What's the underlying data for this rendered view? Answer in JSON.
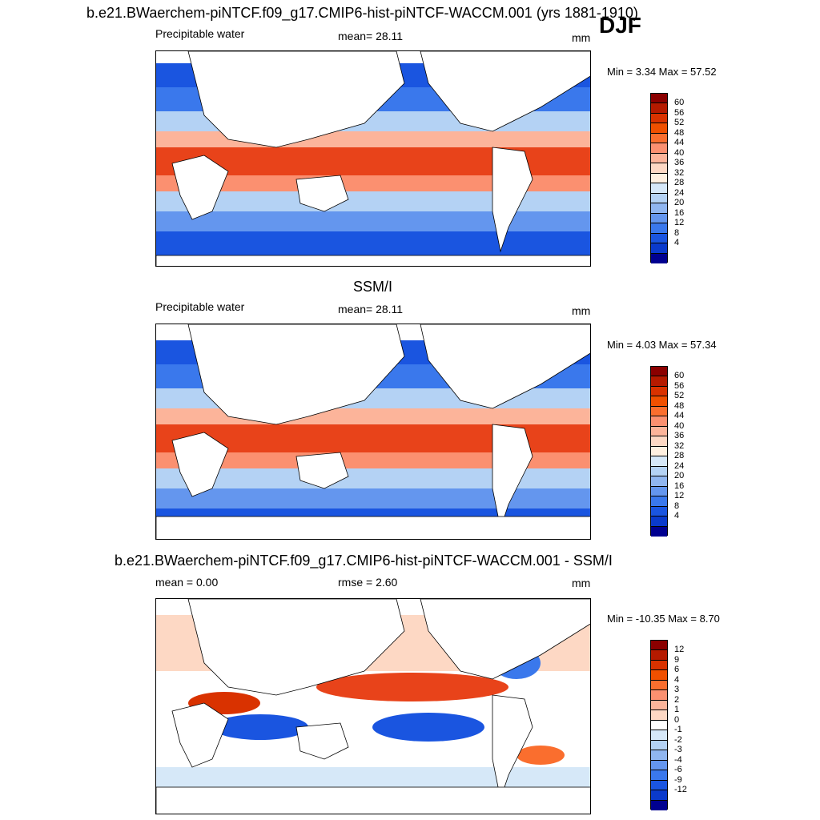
{
  "main_title": "b.e21.BWaerchem-piNTCF.f09_g17.CMIP6-hist-piNTCF-WACCM.001 (yrs 1881-1910)",
  "season": "DJF",
  "panels": [
    {
      "title": "",
      "left_label": "Precipitable water",
      "center_label": "mean=  28.11",
      "right_label": "mm",
      "minmax": "Min =   3.34 Max =  57.52",
      "colorbar": {
        "labels": [
          "60",
          "56",
          "52",
          "48",
          "44",
          "40",
          "36",
          "32",
          "28",
          "24",
          "20",
          "16",
          "12",
          "8",
          "4"
        ],
        "colors": [
          "#8b0000",
          "#b51a00",
          "#d93200",
          "#f05000",
          "#fa6e2e",
          "#fb9070",
          "#fcb49a",
          "#fdd8c4",
          "#fff0e0",
          "#d6e8f8",
          "#b4d2f4",
          "#90b6f0",
          "#6496ee",
          "#3a78ec",
          "#1a55e0",
          "#0a3acc",
          "#000090"
        ]
      }
    },
    {
      "title": "SSM/I",
      "left_label": "Precipitable water",
      "center_label": "mean=  28.11",
      "right_label": "mm",
      "minmax": "Min =   4.03 Max =  57.34",
      "colorbar": {
        "labels": [
          "60",
          "56",
          "52",
          "48",
          "44",
          "40",
          "36",
          "32",
          "28",
          "24",
          "20",
          "16",
          "12",
          "8",
          "4"
        ],
        "colors": [
          "#8b0000",
          "#b51a00",
          "#d93200",
          "#f05000",
          "#fa6e2e",
          "#fb9070",
          "#fcb49a",
          "#fdd8c4",
          "#fff0e0",
          "#d6e8f8",
          "#b4d2f4",
          "#90b6f0",
          "#6496ee",
          "#3a78ec",
          "#1a55e0",
          "#0a3acc",
          "#000090"
        ]
      }
    },
    {
      "title": "b.e21.BWaerchem-piNTCF.f09_g17.CMIP6-hist-piNTCF-WACCM.001 - SSM/I",
      "left_label": "mean =   0.00",
      "center_label": "rmse =   2.60",
      "right_label": "mm",
      "minmax": "Min = -10.35 Max =   8.70",
      "colorbar": {
        "labels": [
          "12",
          "9",
          "6",
          "4",
          "3",
          "2",
          "1",
          "0",
          "-1",
          "-2",
          "-3",
          "-4",
          "-6",
          "-9",
          "-12"
        ],
        "colors": [
          "#8b0000",
          "#b51a00",
          "#d93200",
          "#f05000",
          "#fa6e2e",
          "#fb9070",
          "#fcb49a",
          "#fdd8c4",
          "#ffffff",
          "#d6e8f8",
          "#b4d2f4",
          "#90b6f0",
          "#6496ee",
          "#3a78ec",
          "#1a55e0",
          "#0a3acc",
          "#000090"
        ]
      }
    }
  ],
  "colors": {
    "warm": "#e8431a",
    "cool": "#1a55e0",
    "land": "#ffffff"
  }
}
